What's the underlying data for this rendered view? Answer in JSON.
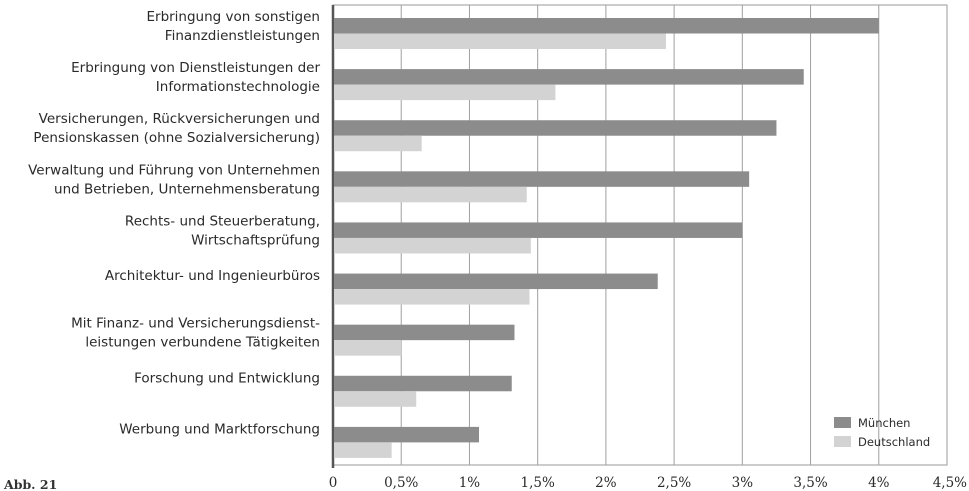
{
  "caption": "Abb. 21",
  "chart_data": {
    "type": "bar",
    "orientation": "horizontal",
    "categories": [
      [
        "Erbringung von sonstigen",
        "Finanzdienstleistungen"
      ],
      [
        "Erbringung von Dienstleistungen der",
        "Informationstechnologie"
      ],
      [
        "Versicherungen, Rückversicherungen und",
        "Pensionskassen (ohne Sozialversicherung)"
      ],
      [
        "Verwaltung und Führung von Unternehmen",
        "und Betrieben, Unternehmensberatung"
      ],
      [
        "Rechts- und Steuerberatung,",
        "Wirtschaftsprüfung"
      ],
      [
        "Architektur- und Ingenieurbüros"
      ],
      [
        "Mit Finanz- und Versicherungsdienst-",
        "leistungen verbundene Tätigkeiten"
      ],
      [
        "Forschung und Entwicklung"
      ],
      [
        "Werbung und Marktforschung"
      ]
    ],
    "series": [
      {
        "name": "München",
        "color": "#8c8c8c",
        "values": [
          4.0,
          3.45,
          3.25,
          3.05,
          3.0,
          2.38,
          1.33,
          1.31,
          1.07
        ]
      },
      {
        "name": "Deutschland",
        "color": "#d3d3d3",
        "values": [
          2.44,
          1.63,
          0.65,
          1.42,
          1.45,
          1.44,
          0.5,
          0.61,
          0.43
        ]
      }
    ],
    "xlim": [
      0,
      4.5
    ],
    "xticks": [
      {
        "value": 0,
        "label": "0"
      },
      {
        "value": 0.5,
        "label": "0,5%"
      },
      {
        "value": 1,
        "label": "1%"
      },
      {
        "value": 1.5,
        "label": "1,5%"
      },
      {
        "value": 2,
        "label": "2%"
      },
      {
        "value": 2.5,
        "label": "2,5%"
      },
      {
        "value": 3,
        "label": "3%"
      },
      {
        "value": 3.5,
        "label": "3,5%"
      },
      {
        "value": 4,
        "label": "4%"
      },
      {
        "value": 4.5,
        "label": "4,5%"
      }
    ],
    "grid": true,
    "legend_position": "bottom-right"
  }
}
